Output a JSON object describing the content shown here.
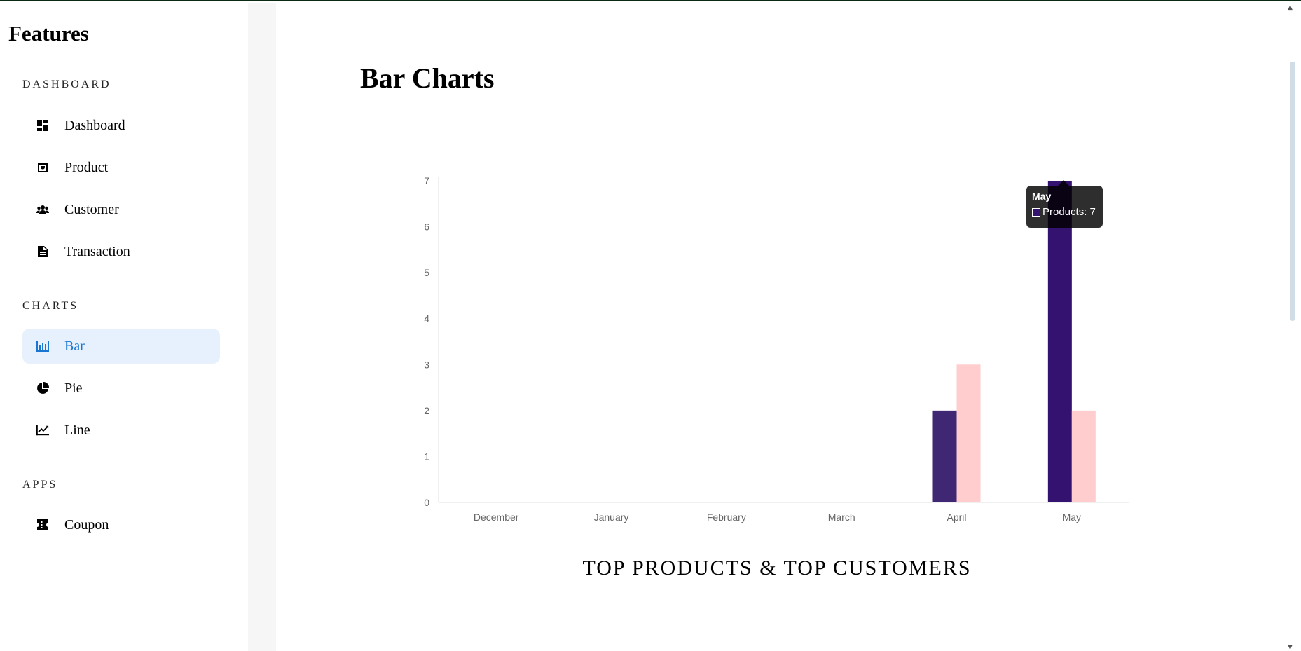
{
  "sidebar": {
    "brand": "Features",
    "sections": [
      {
        "label": "DASHBOARD",
        "items": [
          {
            "label": "Dashboard",
            "icon": "dashboard-icon"
          },
          {
            "label": "Product",
            "icon": "product-icon"
          },
          {
            "label": "Customer",
            "icon": "customer-icon"
          },
          {
            "label": "Transaction",
            "icon": "transaction-icon"
          }
        ]
      },
      {
        "label": "CHARTS",
        "items": [
          {
            "label": "Bar",
            "icon": "bar-chart-icon",
            "active": true
          },
          {
            "label": "Pie",
            "icon": "pie-chart-icon"
          },
          {
            "label": "Line",
            "icon": "line-chart-icon"
          }
        ]
      },
      {
        "label": "APPS",
        "items": [
          {
            "label": "Coupon",
            "icon": "coupon-icon"
          }
        ]
      }
    ]
  },
  "main": {
    "title": "Bar Charts",
    "caption": "TOP PRODUCTS & TOP CUSTOMERS"
  },
  "tooltip": {
    "title": "May",
    "series": "Products",
    "value": "7",
    "text": "Products: 7"
  },
  "colors": {
    "products": "#3f2773",
    "products_hover": "#34126f",
    "customers": "#ffcdcd",
    "active_accent": "#1976d2",
    "active_bg": "#e6f1fd"
  },
  "chart_data": {
    "type": "bar",
    "categories": [
      "December",
      "January",
      "February",
      "March",
      "April",
      "May"
    ],
    "series": [
      {
        "name": "Products",
        "values": [
          0,
          0,
          0,
          0,
          2,
          7
        ]
      },
      {
        "name": "Customers",
        "values": [
          0,
          0,
          0,
          0,
          3,
          2
        ]
      }
    ],
    "title": "TOP PRODUCTS & TOP CUSTOMERS",
    "xlabel": "",
    "ylabel": "",
    "ylim": [
      0,
      7
    ],
    "yticks": [
      0,
      1,
      2,
      3,
      4,
      5,
      6,
      7
    ],
    "grid": false,
    "legend": "none"
  }
}
